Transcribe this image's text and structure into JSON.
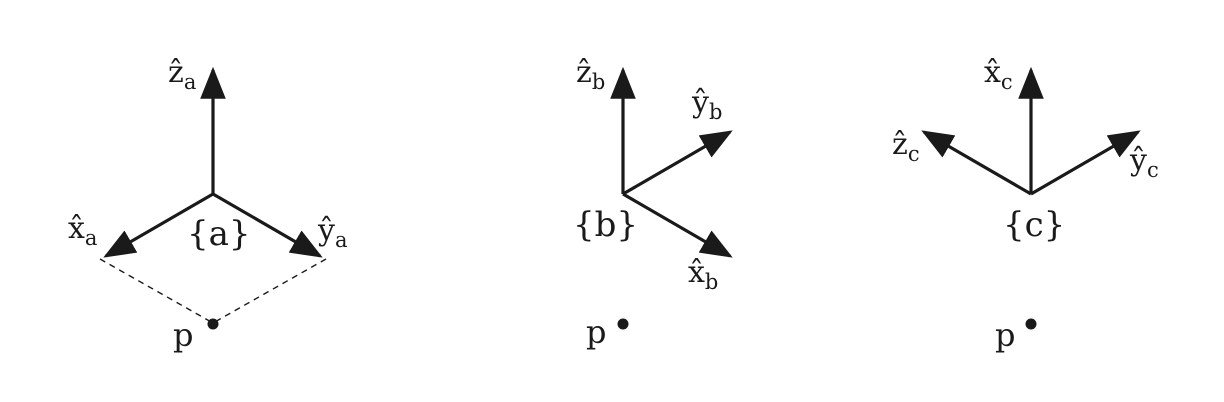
{
  "colors": {
    "ink": "#1a1a1a",
    "background": "#ffffff"
  },
  "frames": {
    "a": {
      "name": "{a}",
      "x_axis": {
        "base": "x̂",
        "sub": "a"
      },
      "y_axis": {
        "base": "ŷ",
        "sub": "a"
      },
      "z_axis": {
        "base": "ẑ",
        "sub": "a"
      },
      "point": "p"
    },
    "b": {
      "name": "{b}",
      "x_axis": {
        "base": "x̂",
        "sub": "b"
      },
      "y_axis": {
        "base": "ŷ",
        "sub": "b"
      },
      "z_axis": {
        "base": "ẑ",
        "sub": "b"
      },
      "point": "p"
    },
    "c": {
      "name": "{c}",
      "x_axis": {
        "base": "x̂",
        "sub": "c"
      },
      "y_axis": {
        "base": "ŷ",
        "sub": "c"
      },
      "z_axis": {
        "base": "ẑ",
        "sub": "c"
      },
      "point": "p"
    }
  }
}
